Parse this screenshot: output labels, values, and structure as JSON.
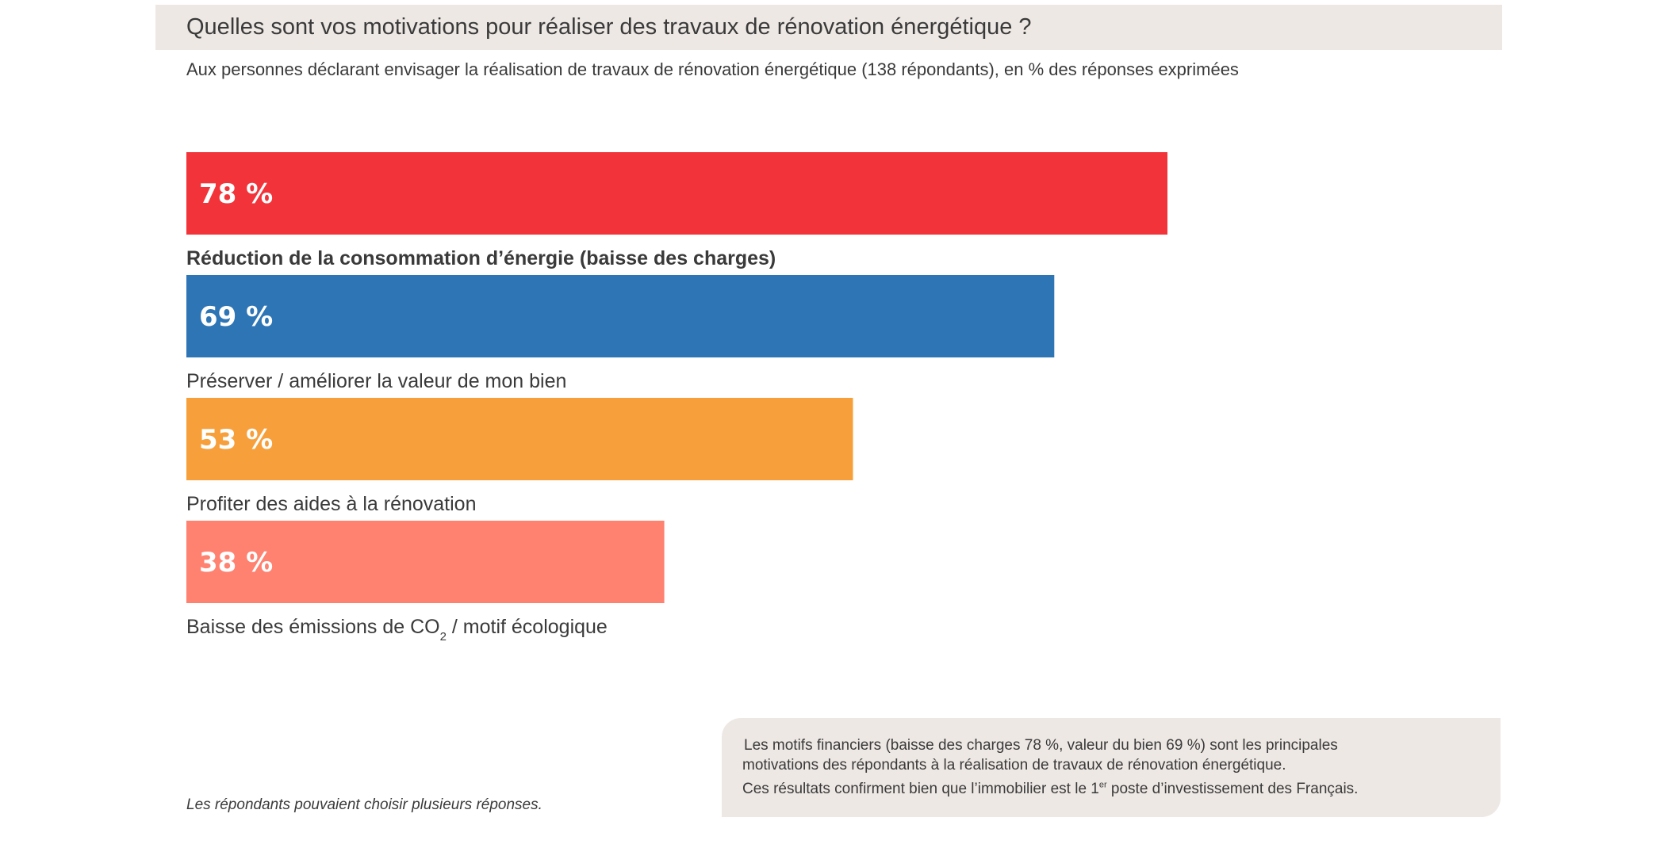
{
  "header": {
    "title": "Quelles sont vos motivations pour réaliser des travaux de rénovation énergétique ?",
    "subtitle": "Aux personnes déclarant envisager la réalisation de travaux de rénovation énergétique (138 répondants), en % des réponses exprimées"
  },
  "chart_data": {
    "type": "bar",
    "orientation": "horizontal",
    "title": "Quelles sont vos motivations pour réaliser des travaux de rénovation énergétique ?",
    "categories": [
      "Réduction de la consommation d’énergie (baisse des charges)",
      "Préserver / améliorer la valeur de mon bien",
      "Profiter des aides à la rénovation",
      "Baisse des émissions de CO2 / motif écologique"
    ],
    "values": [
      78,
      69,
      53,
      38
    ],
    "value_labels": [
      "78 %",
      "69 %",
      "53 %",
      "38 %"
    ],
    "colors": [
      "#f23339",
      "#2e75b6",
      "#f7a03b",
      "#ff8170"
    ],
    "unit": "%",
    "xlim": [
      0,
      100
    ],
    "grid": false,
    "legend": "none"
  },
  "footer": {
    "note": "Les répondants pouvaient choisir plusieurs réponses.",
    "callout_line_1": "Les motifs financiers (baisse des charges 78 %, valeur du bien 69 %) sont les principales",
    "callout_line_2": "motivations des répondants à la réalisation de travaux de rénovation énergétique.",
    "callout_line_3_before": "Ces résultats confirment bien que l’immobilier est le 1",
    "callout_line_3_sup": "er",
    "callout_line_3_after": " poste d’investissement des Français."
  }
}
